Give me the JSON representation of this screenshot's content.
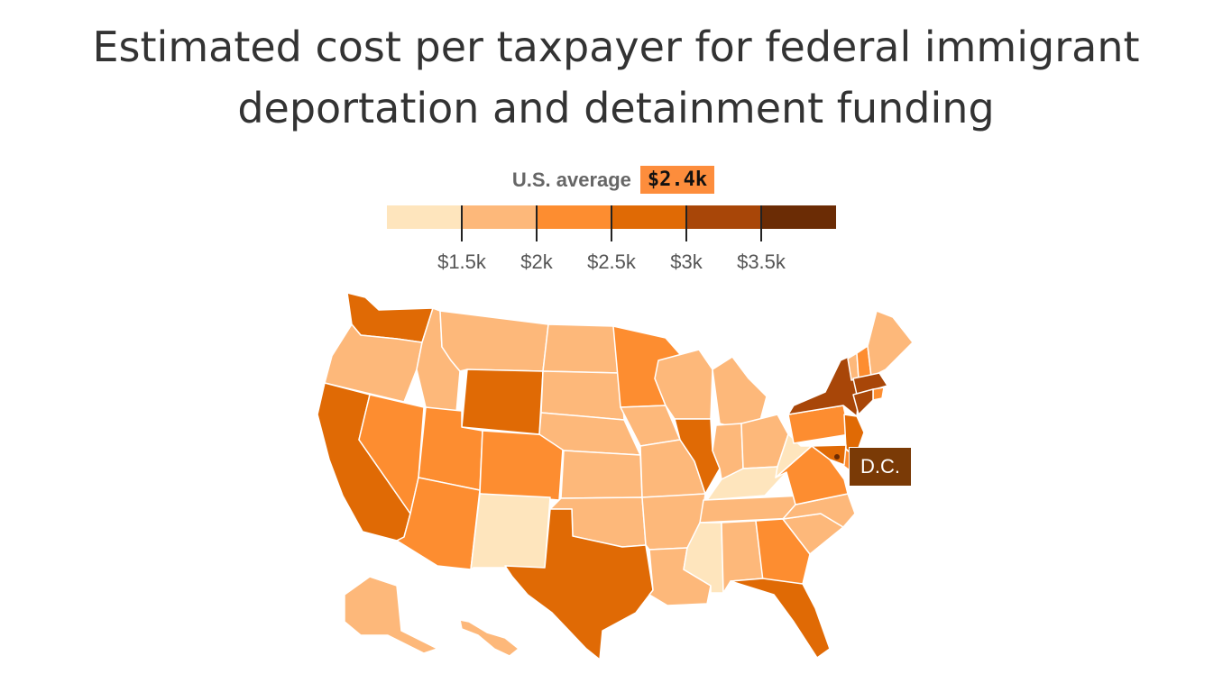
{
  "title_line1": "Estimated cost per taxpayer for federal immigrant",
  "title_line2": "deportation and detainment funding",
  "average": {
    "label": "U.S. average",
    "value": "$2.4k"
  },
  "colors": [
    "#fee5bd",
    "#fdb87a",
    "#fd8d30",
    "#e06a05",
    "#a84608",
    "#6b2c05"
  ],
  "legend": {
    "ticks": [
      "$1.5k",
      "$2k",
      "$2.5k",
      "$3k",
      "$3.5k"
    ]
  },
  "dc_label": "D.C.",
  "chart_data": {
    "type": "map",
    "title": "Estimated cost per taxpayer for federal immigrant deportation and detainment funding",
    "us_average": 2.4,
    "unit": "$k",
    "bins": [
      {
        "range": "< $1.5k",
        "level": 0
      },
      {
        "range": "$1.5k–$2k",
        "level": 1
      },
      {
        "range": "$2k–$2.5k",
        "level": 2
      },
      {
        "range": "$2.5k–$3k",
        "level": 3
      },
      {
        "range": "$3k–$3.5k",
        "level": 4
      },
      {
        "range": "> $3.5k",
        "level": 5
      }
    ],
    "states": {
      "WA": 3,
      "OR": 1,
      "CA": 3,
      "NV": 2,
      "ID": 1,
      "MT": 1,
      "WY": 3,
      "UT": 2,
      "AZ": 2,
      "CO": 2,
      "NM": 0,
      "ND": 1,
      "SD": 1,
      "NE": 1,
      "KS": 1,
      "OK": 1,
      "TX": 3,
      "MN": 2,
      "IA": 1,
      "MO": 1,
      "AR": 1,
      "LA": 1,
      "WI": 1,
      "IL": 3,
      "MI": 1,
      "IN": 1,
      "OH": 1,
      "KY": 0,
      "TN": 1,
      "MS": 0,
      "AL": 1,
      "GA": 2,
      "FL": 3,
      "SC": 1,
      "NC": 1,
      "VA": 2,
      "WV": 0,
      "PA": 2,
      "NY": 4,
      "VT": 1,
      "NH": 2,
      "ME": 1,
      "MA": 4,
      "RI": 2,
      "CT": 4,
      "NJ": 3,
      "DE": 2,
      "MD": 3,
      "DC": 5,
      "AK": 1,
      "HI": 1
    }
  }
}
